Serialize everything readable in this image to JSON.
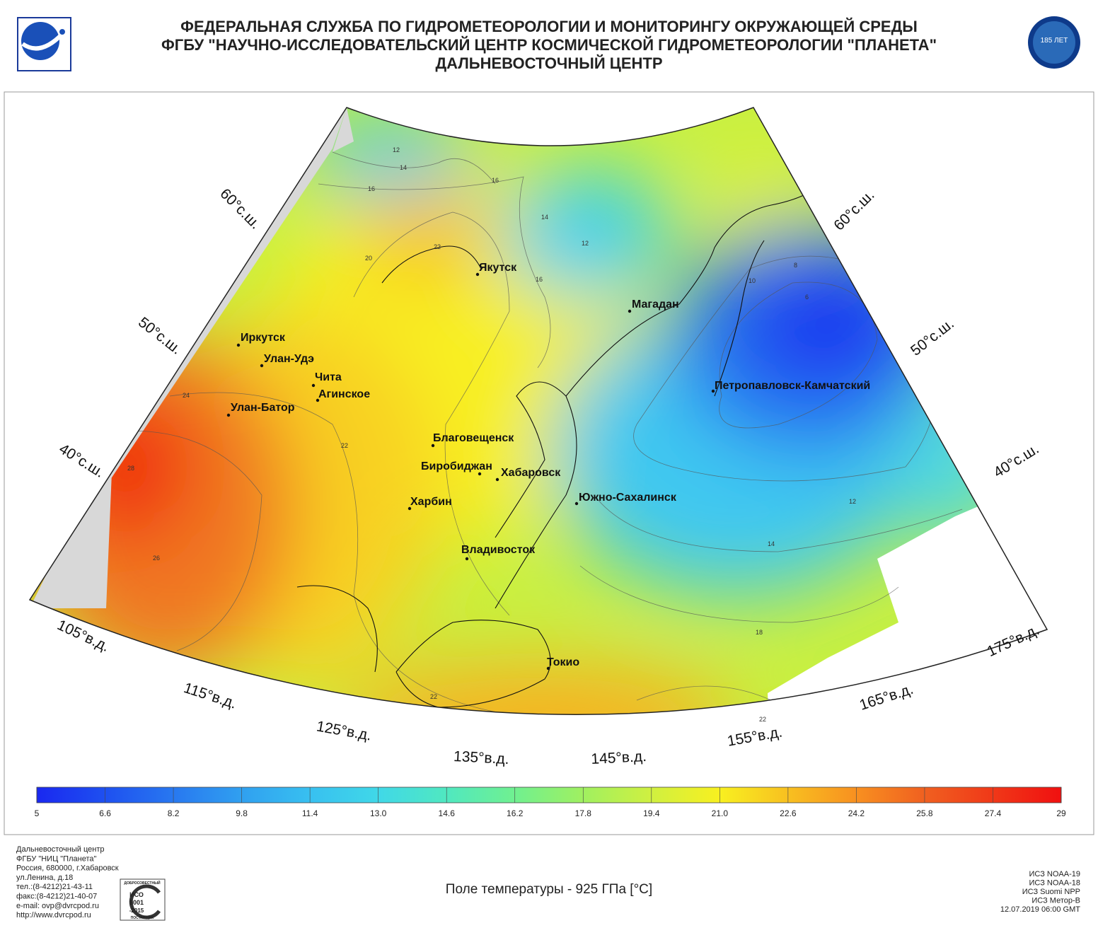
{
  "header": {
    "lines": [
      "ФЕДЕРАЛЬНАЯ СЛУЖБА ПО ГИДРОМЕТЕОРОЛОГИИ И МОНИТОРИНГУ ОКРУЖАЮЩЕЙ СРЕДЫ",
      "ФГБУ \"НАУЧНО-ИССЛЕДОВАТЕЛЬСКИЙ ЦЕНТР КОСМИЧЕСКОЙ ГИДРОМЕТЕОРОЛОГИИ \"ПЛАНЕТА\"",
      "ДАЛЬНЕВОСТОЧНЫЙ ЦЕНТР"
    ],
    "anniversary_logo": "185 ЛЕТ"
  },
  "map": {
    "latitude_labels": [
      "60°с.ш.",
      "50°с.ш.",
      "40°с.ш.",
      "60°с.ш.",
      "50°с.ш.",
      "40°с.ш."
    ],
    "longitude_labels": [
      "105°в.д.",
      "115°в.д.",
      "125°в.д.",
      "135°в.д.",
      "145°в.д.",
      "155°в.д.",
      "165°в.д.",
      "175°в.д."
    ],
    "cities": [
      "Якутск",
      "Иркутск",
      "Улан-Удэ",
      "Чита",
      "Агинское",
      "Улан-Батор",
      "Благовещенск",
      "Биробиджан",
      "Хабаровск",
      "Харбин",
      "Владивосток",
      "Южно-Сахалинск",
      "Магадан",
      "Петропавловск-Камчатский",
      "Токио"
    ],
    "contour_labels": [
      12,
      14,
      16,
      16,
      14,
      12,
      20,
      22,
      16,
      24,
      22,
      28,
      26,
      10,
      8,
      6,
      12,
      14,
      18,
      22,
      22
    ]
  },
  "colorbar": {
    "ticks": [
      5,
      6.6,
      8.2,
      9.8,
      11.4,
      {
        "value": 13,
        "label": "13.0"
      },
      14.6,
      16.2,
      17.8,
      19.4,
      {
        "value": 21,
        "label": "21.0"
      },
      22.6,
      24.2,
      25.8,
      27.4,
      29
    ],
    "colors": [
      "#1a28f0",
      "#1e50f0",
      "#2878f0",
      "#30a0f0",
      "#38c0f0",
      "#40d8e8",
      "#50e8c0",
      "#70f090",
      "#a0f060",
      "#d0f040",
      "#f8f020",
      "#f8c020",
      "#f89020",
      "#f06020",
      "#f03818",
      "#f01010"
    ]
  },
  "footer": {
    "title": "Поле температуры - 925 ГПа [°C]",
    "address": [
      "Дальневосточный центр",
      "ФГБУ \"НИЦ \"Планета\"",
      "Россия, 680000, г.Хабаровск",
      "ул.Ленина, д.18",
      "тел.:(8-4212)21-43-11",
      "факс:(8-4212)21-40-07",
      "e-mail: ovp@dvrcpod.ru",
      "http://www.dvrcpod.ru"
    ],
    "badge": [
      "ДОБРОСОВЕСТНЫЙ",
      "ИСО",
      "9001",
      "-2015",
      "ПОСТАВЩИК"
    ],
    "satellites": [
      "ИСЗ NOAA-19",
      "ИСЗ NOAA-18",
      "ИСЗ Suomi NPP",
      "ИСЗ Метор-В",
      "12.07.2019 06:00 GMT"
    ]
  }
}
